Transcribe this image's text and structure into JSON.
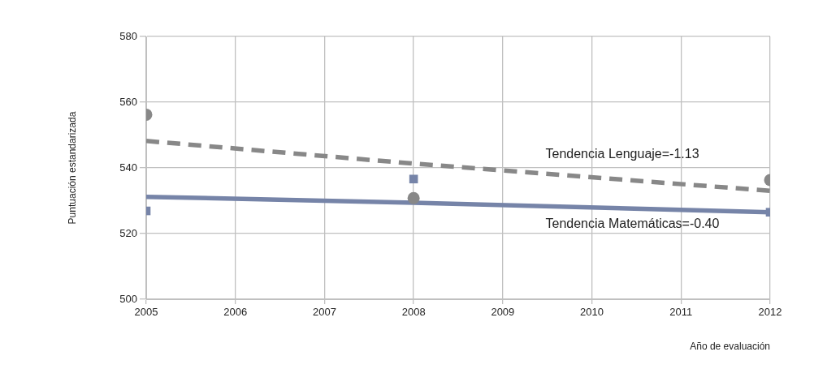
{
  "chart_data": {
    "type": "scatter",
    "xlabel": "Año de evaluación",
    "ylabel": "Puntuación estandarizada",
    "x": [
      2005,
      2008,
      2012
    ],
    "series": [
      {
        "type": "scatter",
        "color": "#888888",
        "marker": "circle",
        "values": [
          556.2,
          530.8,
          536.3
        ]
      },
      {
        "type": "scatter",
        "color": "#7684a8",
        "marker": "square",
        "values": [
          526.9,
          536.6,
          526.5
        ]
      },
      {
        "type": "line",
        "color": "#888888",
        "line_style": "dashed",
        "marker": "none",
        "values": [
          548.2,
          541.3,
          533.0
        ]
      },
      {
        "type": "line",
        "color": "#7684a8",
        "line_style": "solid",
        "marker": "none",
        "values": [
          531.2,
          529.4,
          526.5
        ]
      }
    ],
    "xlim": [
      2005,
      2012
    ],
    "xticks": [
      2005,
      2006,
      2007,
      2008,
      2009,
      2010,
      2011,
      2012
    ],
    "ylim": [
      500,
      580
    ],
    "yticks": [
      500,
      520,
      540,
      560,
      580
    ],
    "grid": true,
    "legend": false,
    "annotations": [
      "Tendencia Lenguaje=-1.13",
      "Tendencia Matemáticas=-0.40"
    ]
  }
}
